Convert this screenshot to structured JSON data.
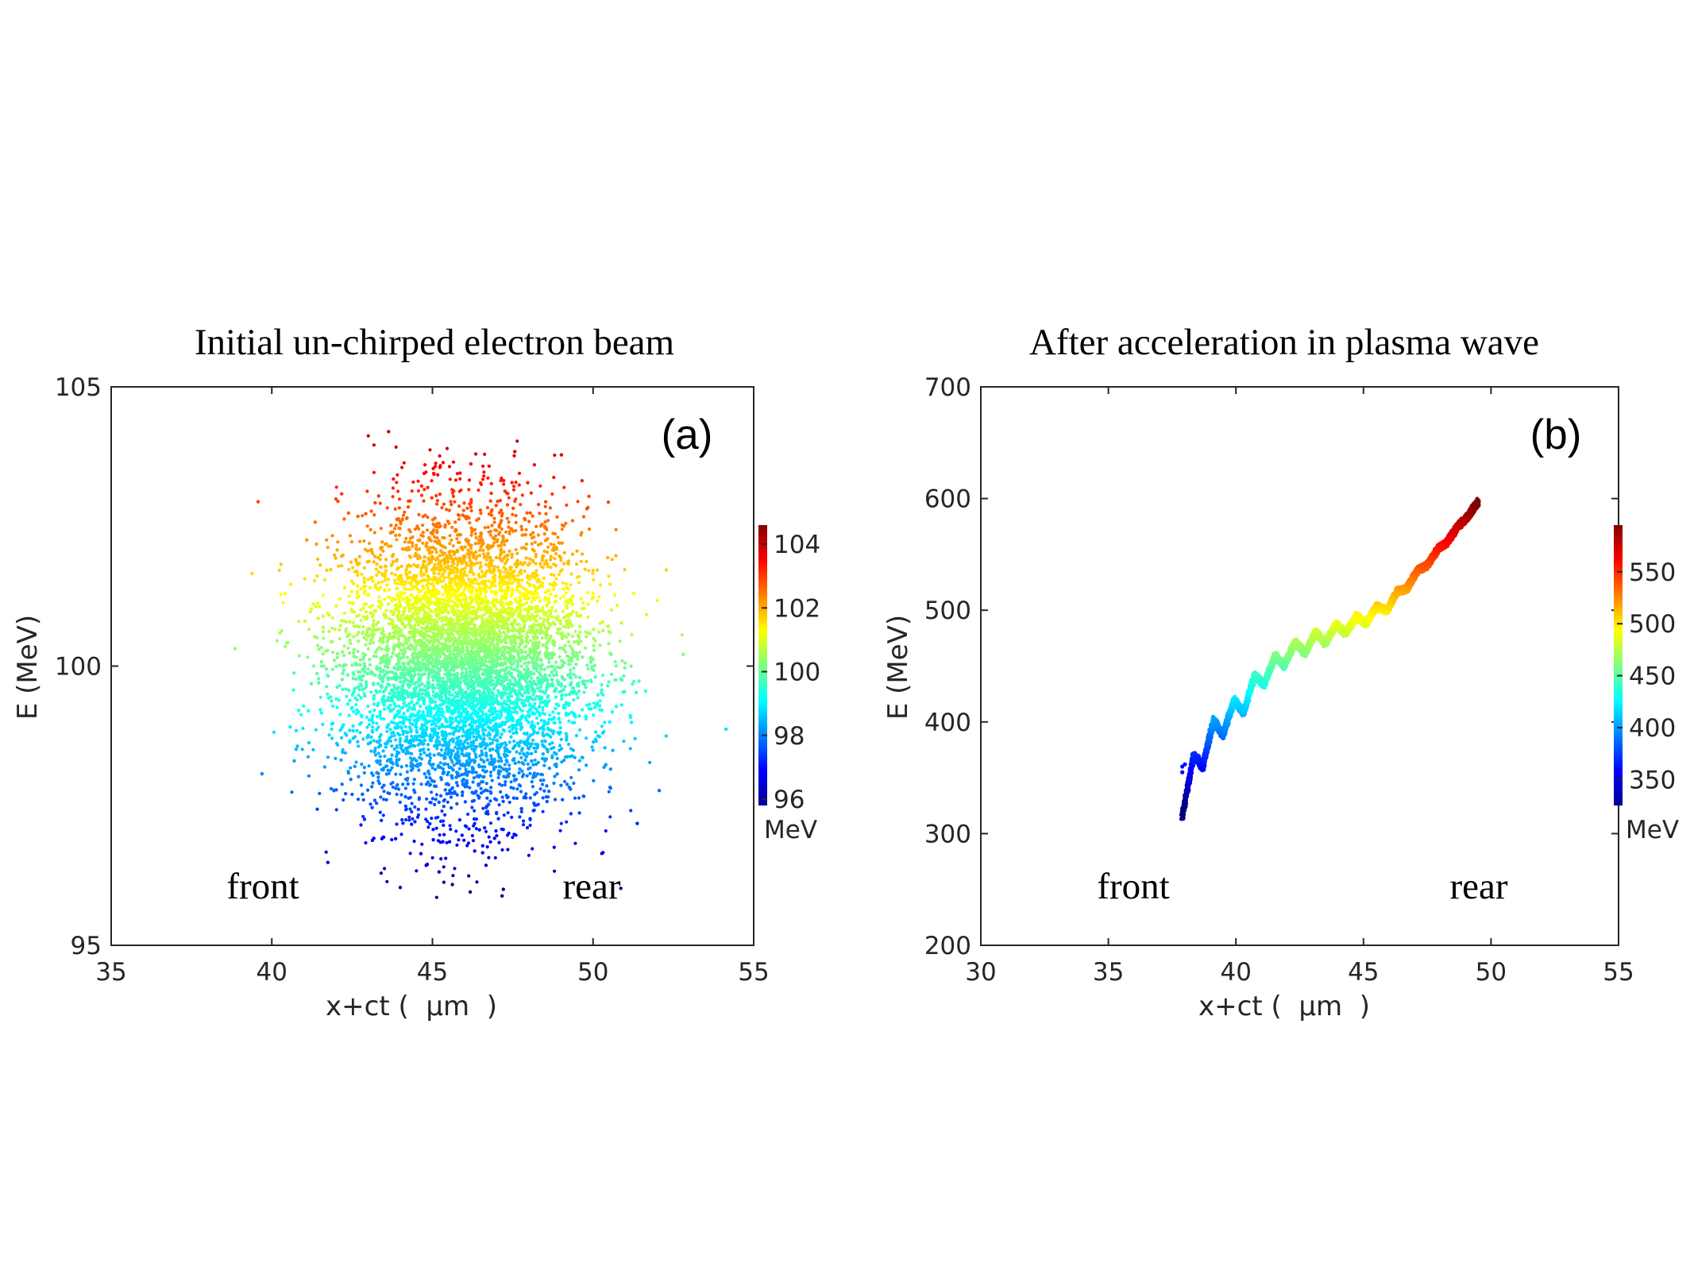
{
  "chart_data": [
    {
      "type": "scatter",
      "title": "Initial un-chirped electron beam",
      "panel_label": "(a)",
      "xlabel": "x+ct (  μm  )",
      "ylabel": "E (MeV)",
      "xlim": [
        35,
        55
      ],
      "ylim": [
        95,
        105
      ],
      "xticks": [
        "35",
        "40",
        "45",
        "50",
        "55"
      ],
      "yticks": [
        "95",
        "100",
        "105"
      ],
      "annotations": [
        "front",
        "rear"
      ],
      "colorbar": {
        "range": [
          95.8,
          104.6
        ],
        "ticks": [
          "96",
          "98",
          "100",
          "102",
          "104"
        ],
        "unit": "MeV",
        "colormap": "jet"
      },
      "distribution": {
        "shape": "gaussian ellipse",
        "x_center": 46.0,
        "x_sigma": 1.9,
        "E_center": 100.1,
        "E_sigma": 1.35,
        "E_min": 95.8,
        "E_max": 104.4,
        "color_by": "E"
      }
    },
    {
      "type": "scatter",
      "title": "After acceleration in plasma wave",
      "panel_label": "(b)",
      "xlabel": "x+ct (  μm  )",
      "ylabel": "E (MeV)",
      "xlim": [
        30,
        55
      ],
      "ylim": [
        200,
        700
      ],
      "xticks": [
        "30",
        "35",
        "40",
        "45",
        "50",
        "55"
      ],
      "yticks": [
        "200",
        "300",
        "400",
        "500",
        "600",
        "700"
      ],
      "annotations": [
        "front",
        "rear"
      ],
      "colorbar": {
        "range": [
          325,
          595
        ],
        "ticks": [
          "350",
          "400",
          "450",
          "500",
          "550"
        ],
        "unit": "MeV",
        "colormap": "jet"
      },
      "trace": {
        "description": "chirped beam with oscillating ripples",
        "x": [
          37.9,
          38.5,
          39.0,
          39.5,
          40.0,
          41.0,
          42.0,
          43.0,
          44.0,
          45.0,
          46.0,
          47.0,
          48.0,
          49.0,
          49.5
        ],
        "E": [
          330,
          365,
          385,
          400,
          410,
          440,
          460,
          472,
          482,
          492,
          505,
          530,
          555,
          582,
          597
        ],
        "ripple_period_um": 0.8,
        "ripple_amplitude_MeV": [
          14,
          14,
          13,
          12,
          11,
          9,
          8,
          7,
          6,
          5,
          4,
          3,
          2,
          1,
          0
        ]
      }
    }
  ]
}
